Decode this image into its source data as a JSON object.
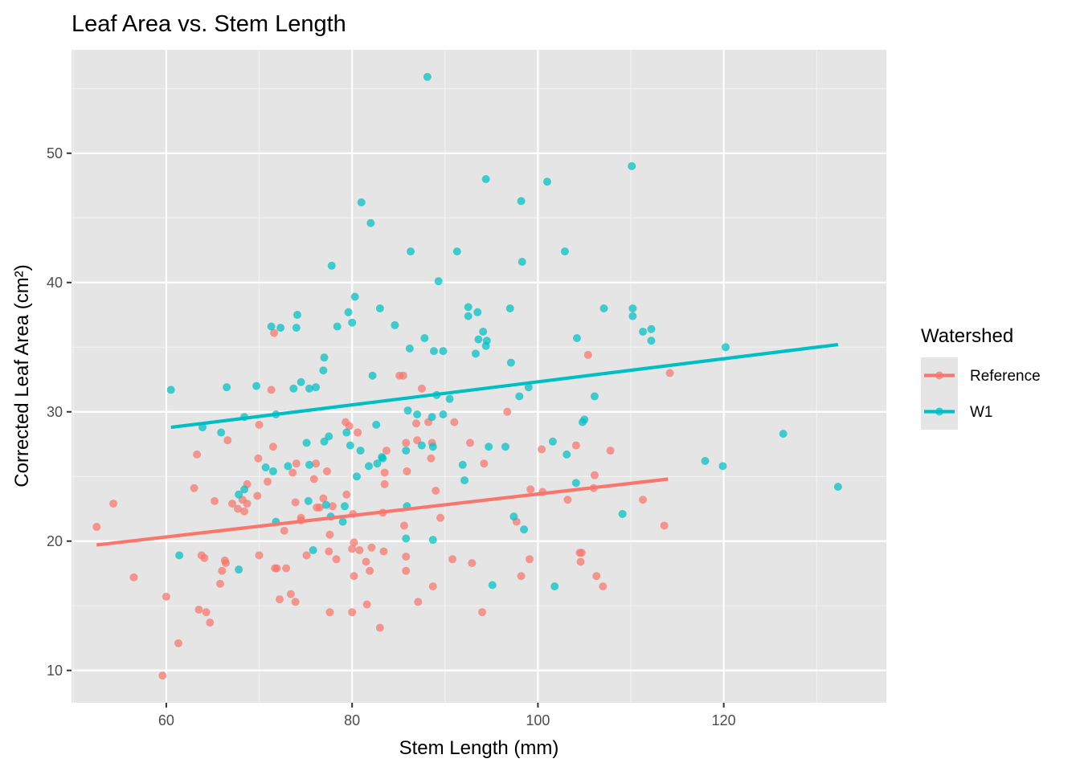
{
  "chart_data": {
    "type": "scatter",
    "title": "Leaf Area vs. Stem Length",
    "xlabel": "Stem Length (mm)",
    "ylabel": "Corrected Leaf Area (cm²)",
    "xlim": [
      49.8,
      137.5
    ],
    "ylim": [
      7.5,
      58.0
    ],
    "x_ticks": [
      60,
      80,
      100,
      120
    ],
    "y_ticks": [
      10,
      20,
      30,
      40,
      50
    ],
    "grid": true,
    "background": "#e5e5e5",
    "legend": {
      "title": "Watershed",
      "position": "right"
    },
    "series": [
      {
        "name": "Reference",
        "color": "#f8766d",
        "trend": {
          "x": [
            52.5,
            114.0
          ],
          "y": [
            19.7,
            24.8
          ]
        },
        "points": [
          [
            52.5,
            21.1
          ],
          [
            54.3,
            22.9
          ],
          [
            56.5,
            17.2
          ],
          [
            59.6,
            9.6
          ],
          [
            60.0,
            15.7
          ],
          [
            61.3,
            12.1
          ],
          [
            63.0,
            24.1
          ],
          [
            63.3,
            26.7
          ],
          [
            63.5,
            14.7
          ],
          [
            63.8,
            18.9
          ],
          [
            64.1,
            18.7
          ],
          [
            64.3,
            14.5
          ],
          [
            64.7,
            13.7
          ],
          [
            65.2,
            23.1
          ],
          [
            65.8,
            16.7
          ],
          [
            66.0,
            17.7
          ],
          [
            66.3,
            18.5
          ],
          [
            66.4,
            18.3
          ],
          [
            66.6,
            27.8
          ],
          [
            67.1,
            22.9
          ],
          [
            67.7,
            22.5
          ],
          [
            68.2,
            23.2
          ],
          [
            68.4,
            22.3
          ],
          [
            68.7,
            24.4
          ],
          [
            68.7,
            22.9
          ],
          [
            69.9,
            26.4
          ],
          [
            69.8,
            23.5
          ],
          [
            70.0,
            18.9
          ],
          [
            70.0,
            29.0
          ],
          [
            70.9,
            24.6
          ],
          [
            71.3,
            31.7
          ],
          [
            71.5,
            27.3
          ],
          [
            71.6,
            36.1
          ],
          [
            71.7,
            17.9
          ],
          [
            71.9,
            17.9
          ],
          [
            72.2,
            15.5
          ],
          [
            72.7,
            20.8
          ],
          [
            72.9,
            17.9
          ],
          [
            73.4,
            15.9
          ],
          [
            73.6,
            25.3
          ],
          [
            73.9,
            23.0
          ],
          [
            73.9,
            15.3
          ],
          [
            74.0,
            26.0
          ],
          [
            74.5,
            21.6
          ],
          [
            74.5,
            21.8
          ],
          [
            75.1,
            18.9
          ],
          [
            75.9,
            24.8
          ],
          [
            76.1,
            26.0
          ],
          [
            76.2,
            22.6
          ],
          [
            76.5,
            22.6
          ],
          [
            76.9,
            23.3
          ],
          [
            77.3,
            25.4
          ],
          [
            77.5,
            19.2
          ],
          [
            77.6,
            20.5
          ],
          [
            77.6,
            14.5
          ],
          [
            77.9,
            22.7
          ],
          [
            78.3,
            18.6
          ],
          [
            79.3,
            29.2
          ],
          [
            79.4,
            23.6
          ],
          [
            79.7,
            28.9
          ],
          [
            80.0,
            19.4
          ],
          [
            80.0,
            14.5
          ],
          [
            80.1,
            22.1
          ],
          [
            80.2,
            17.3
          ],
          [
            80.2,
            19.9
          ],
          [
            80.6,
            28.4
          ],
          [
            80.8,
            19.3
          ],
          [
            81.5,
            18.4
          ],
          [
            81.6,
            15.1
          ],
          [
            81.9,
            17.7
          ],
          [
            82.1,
            19.5
          ],
          [
            83.0,
            13.3
          ],
          [
            83.3,
            22.2
          ],
          [
            83.4,
            19.2
          ],
          [
            83.5,
            24.4
          ],
          [
            83.5,
            25.3
          ],
          [
            83.7,
            27.0
          ],
          [
            85.1,
            32.8
          ],
          [
            85.5,
            32.8
          ],
          [
            85.6,
            21.2
          ],
          [
            85.8,
            27.6
          ],
          [
            85.8,
            18.8
          ],
          [
            85.8,
            17.7
          ],
          [
            85.9,
            25.4
          ],
          [
            86.9,
            29.1
          ],
          [
            87.0,
            27.8
          ],
          [
            87.1,
            15.3
          ],
          [
            87.5,
            31.8
          ],
          [
            88.2,
            29.2
          ],
          [
            88.5,
            26.4
          ],
          [
            88.6,
            27.6
          ],
          [
            88.7,
            16.5
          ],
          [
            89.0,
            23.9
          ],
          [
            89.5,
            21.8
          ],
          [
            90.8,
            18.6
          ],
          [
            91.0,
            29.2
          ],
          [
            92.7,
            27.6
          ],
          [
            92.9,
            18.3
          ],
          [
            94.0,
            14.5
          ],
          [
            94.2,
            26.0
          ],
          [
            96.7,
            30.0
          ],
          [
            97.7,
            21.5
          ],
          [
            98.2,
            17.3
          ],
          [
            99.1,
            18.6
          ],
          [
            99.2,
            24.0
          ],
          [
            100.4,
            27.1
          ],
          [
            100.5,
            23.8
          ],
          [
            103.2,
            23.2
          ],
          [
            104.1,
            27.4
          ],
          [
            104.5,
            19.1
          ],
          [
            104.6,
            18.4
          ],
          [
            104.7,
            19.1
          ],
          [
            105.4,
            34.4
          ],
          [
            106.0,
            24.1
          ],
          [
            106.1,
            25.1
          ],
          [
            106.3,
            17.3
          ],
          [
            107.0,
            16.5
          ],
          [
            107.8,
            27.0
          ],
          [
            111.3,
            23.2
          ],
          [
            113.6,
            21.2
          ],
          [
            114.2,
            33.0
          ]
        ]
      },
      {
        "name": "W1",
        "color": "#00bfc4",
        "trend": {
          "x": [
            60.5,
            132.3
          ],
          "y": [
            28.8,
            35.2
          ]
        },
        "points": [
          [
            60.5,
            31.7
          ],
          [
            61.4,
            18.9
          ],
          [
            63.9,
            28.8
          ],
          [
            65.9,
            28.4
          ],
          [
            66.5,
            31.9
          ],
          [
            67.8,
            23.6
          ],
          [
            67.8,
            17.8
          ],
          [
            68.4,
            29.6
          ],
          [
            68.4,
            24.0
          ],
          [
            69.7,
            32.0
          ],
          [
            70.7,
            25.7
          ],
          [
            71.3,
            36.6
          ],
          [
            71.5,
            25.4
          ],
          [
            71.8,
            29.8
          ],
          [
            71.8,
            21.5
          ],
          [
            72.3,
            36.5
          ],
          [
            73.1,
            25.8
          ],
          [
            73.7,
            31.8
          ],
          [
            74.0,
            36.5
          ],
          [
            74.1,
            37.5
          ],
          [
            74.5,
            32.3
          ],
          [
            75.1,
            27.6
          ],
          [
            75.3,
            23.1
          ],
          [
            75.4,
            31.8
          ],
          [
            75.4,
            25.9
          ],
          [
            75.8,
            19.3
          ],
          [
            76.1,
            31.9
          ],
          [
            76.9,
            33.2
          ],
          [
            77.0,
            27.7
          ],
          [
            77.0,
            34.2
          ],
          [
            77.2,
            22.8
          ],
          [
            77.5,
            28.1
          ],
          [
            77.7,
            21.9
          ],
          [
            77.8,
            41.3
          ],
          [
            78.4,
            36.6
          ],
          [
            79.0,
            21.5
          ],
          [
            79.2,
            22.7
          ],
          [
            79.4,
            28.4
          ],
          [
            79.6,
            37.7
          ],
          [
            79.8,
            27.4
          ],
          [
            80.0,
            36.9
          ],
          [
            80.3,
            38.9
          ],
          [
            80.5,
            25.0
          ],
          [
            80.9,
            27.0
          ],
          [
            81.0,
            46.2
          ],
          [
            81.8,
            25.8
          ],
          [
            82.0,
            44.6
          ],
          [
            82.2,
            32.8
          ],
          [
            82.6,
            29.0
          ],
          [
            82.7,
            26.0
          ],
          [
            83.0,
            38.0
          ],
          [
            83.2,
            26.5
          ],
          [
            83.3,
            26.4
          ],
          [
            84.6,
            36.7
          ],
          [
            85.8,
            27.0
          ],
          [
            85.8,
            20.2
          ],
          [
            85.9,
            22.7
          ],
          [
            86.0,
            30.1
          ],
          [
            86.2,
            34.9
          ],
          [
            86.3,
            42.4
          ],
          [
            87.0,
            29.8
          ],
          [
            87.5,
            27.4
          ],
          [
            87.8,
            35.7
          ],
          [
            88.1,
            55.9
          ],
          [
            88.6,
            29.6
          ],
          [
            88.7,
            27.3
          ],
          [
            88.7,
            20.1
          ],
          [
            88.8,
            34.7
          ],
          [
            89.1,
            31.3
          ],
          [
            89.3,
            40.1
          ],
          [
            89.8,
            34.7
          ],
          [
            89.8,
            29.8
          ],
          [
            90.5,
            31.0
          ],
          [
            91.3,
            42.4
          ],
          [
            91.9,
            25.9
          ],
          [
            92.1,
            24.7
          ],
          [
            92.5,
            37.4
          ],
          [
            92.5,
            38.1
          ],
          [
            93.3,
            34.5
          ],
          [
            93.5,
            37.7
          ],
          [
            93.6,
            35.6
          ],
          [
            94.1,
            36.2
          ],
          [
            94.4,
            35.1
          ],
          [
            94.4,
            48.0
          ],
          [
            94.5,
            35.5
          ],
          [
            94.7,
            27.3
          ],
          [
            95.1,
            16.6
          ],
          [
            96.5,
            27.3
          ],
          [
            97.0,
            38.0
          ],
          [
            97.1,
            33.8
          ],
          [
            97.4,
            21.9
          ],
          [
            98.0,
            31.2
          ],
          [
            98.2,
            46.3
          ],
          [
            98.3,
            41.6
          ],
          [
            98.5,
            20.9
          ],
          [
            99.0,
            31.9
          ],
          [
            101.0,
            47.8
          ],
          [
            101.6,
            27.7
          ],
          [
            101.8,
            16.5
          ],
          [
            102.9,
            42.4
          ],
          [
            103.1,
            26.7
          ],
          [
            104.1,
            24.5
          ],
          [
            104.2,
            35.7
          ],
          [
            104.8,
            29.2
          ],
          [
            105.0,
            29.4
          ],
          [
            106.1,
            31.2
          ],
          [
            107.1,
            38.0
          ],
          [
            109.1,
            22.1
          ],
          [
            110.1,
            49.0
          ],
          [
            110.2,
            38.0
          ],
          [
            110.2,
            37.4
          ],
          [
            111.3,
            36.2
          ],
          [
            112.2,
            36.4
          ],
          [
            112.2,
            35.5
          ],
          [
            118.0,
            26.2
          ],
          [
            119.9,
            25.8
          ],
          [
            120.2,
            35.0
          ],
          [
            126.4,
            28.3
          ],
          [
            132.3,
            24.2
          ]
        ]
      }
    ]
  }
}
